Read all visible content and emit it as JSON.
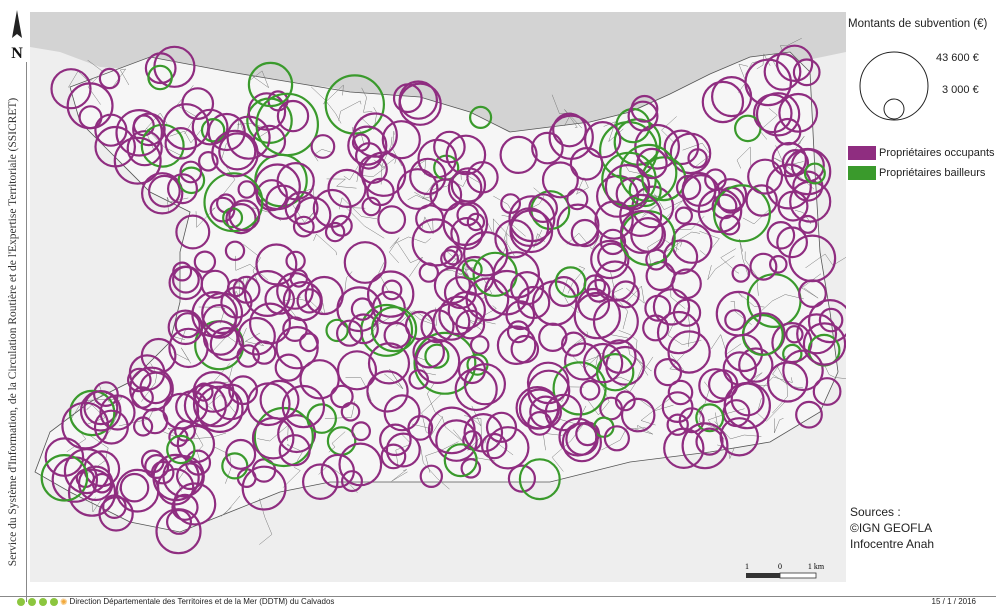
{
  "credit_vertical": "Service du Système d'Information, de la Circulation Routière et de l'Expertise Territoriale (SSICRET)",
  "north_label": "N",
  "legend": {
    "title": "Montants de subvention (€)",
    "size_max_label": "43 600 €",
    "size_min_label": "3 000 €",
    "categories": [
      {
        "label": "Propriétaires occupants",
        "color": "#8f2d80"
      },
      {
        "label": "Propriétaires bailleurs",
        "color": "#3a9a2c"
      }
    ]
  },
  "sources": {
    "heading": "Sources :",
    "lines": [
      "©IGN GEOFLA",
      "Infocentre Anah"
    ]
  },
  "scale_bar": {
    "left": "1",
    "mid": "0",
    "right": "1 km"
  },
  "footer": {
    "organisation": "Direction Départementale des Territoires et de la Mer (DDTM) du Calvados",
    "date": "15 / 1 / 2016"
  },
  "colors": {
    "sea": "#d3d3d3",
    "land": "#eeeeee",
    "department": "#f6f6f6",
    "occupants": "#8f2d80",
    "bailleurs": "#3a9a2c"
  },
  "icons": [
    "north-arrow-icon",
    "sun-logo-icon"
  ]
}
